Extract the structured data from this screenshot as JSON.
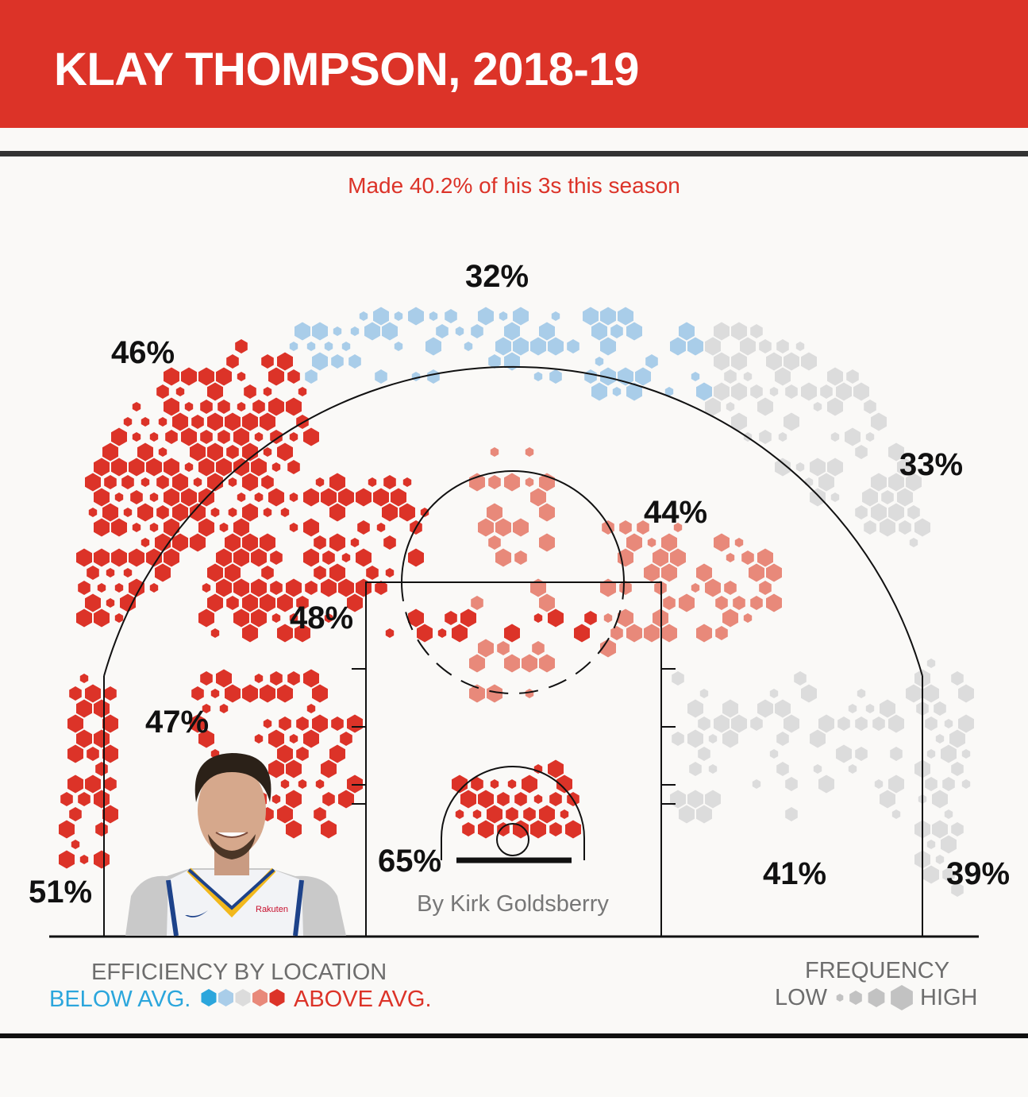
{
  "header": {
    "title": "KLAY THOMPSON, 2018-19"
  },
  "subtitle": "Made 40.2% of his 3s this season",
  "byline": "By Kirk Goldsberry",
  "legend": {
    "efficiency_title": "EFFICIENCY BY LOCATION",
    "below_label": "BELOW AVG.",
    "above_label": "ABOVE AVG.",
    "efficiency_scale_colors": [
      "#2ba6dc",
      "#a9cde9",
      "#dcdcdc",
      "#e8897a",
      "#dc3328"
    ],
    "frequency_title": "FREQUENCY",
    "low_label": "LOW",
    "high_label": "HIGH",
    "frequency_color": "#c2c2c2"
  },
  "photo": {
    "jersey_text": "Rakuten"
  },
  "chart_data": {
    "type": "hexbin shot chart",
    "zones": [
      {
        "zone": "left corner 3",
        "fg_pct": "51%"
      },
      {
        "zone": "left wing 3",
        "fg_pct": "46%"
      },
      {
        "zone": "top of key 3",
        "fg_pct": "32%"
      },
      {
        "zone": "right wing 3",
        "fg_pct": "33%"
      },
      {
        "zone": "right corner 3",
        "fg_pct": "39%"
      },
      {
        "zone": "left elbow mid-range",
        "fg_pct": "48%"
      },
      {
        "zone": "left baseline mid-range",
        "fg_pct": "47%"
      },
      {
        "zone": "right elbow mid-range",
        "fg_pct": "44%"
      },
      {
        "zone": "right baseline mid-range",
        "fg_pct": "41%"
      },
      {
        "zone": "restricted area",
        "fg_pct": "65%"
      }
    ]
  }
}
